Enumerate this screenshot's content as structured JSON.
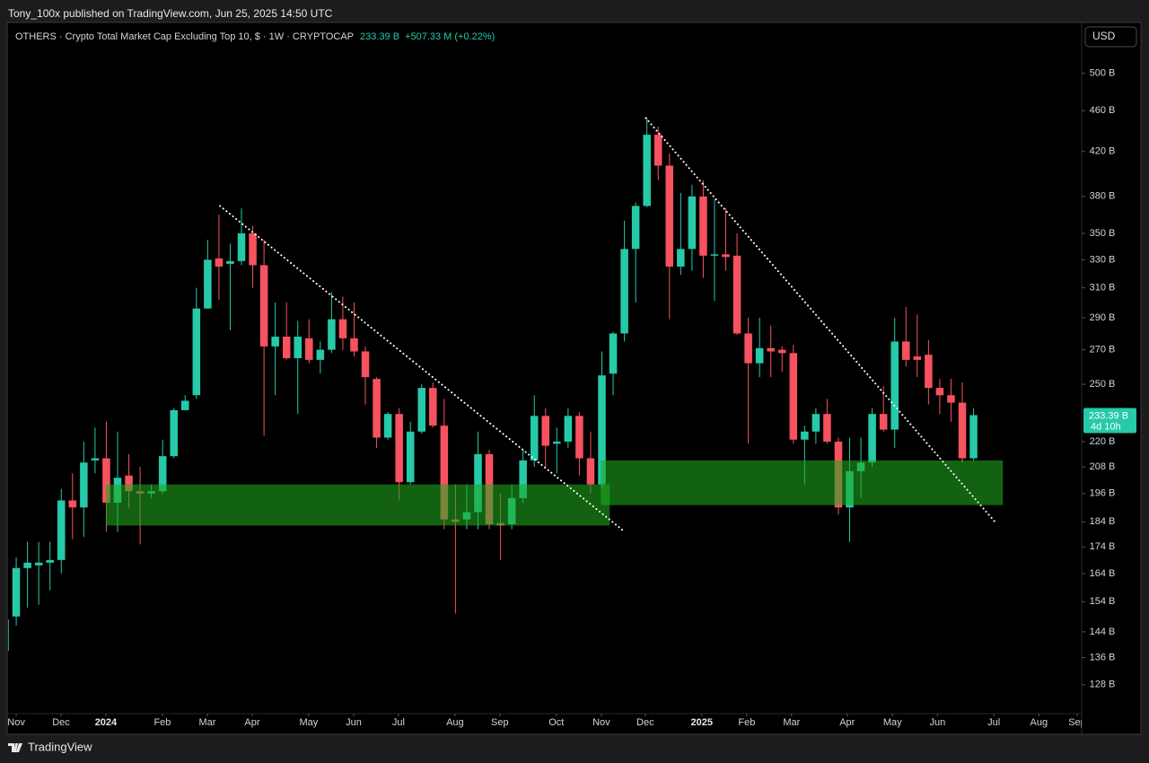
{
  "header": {
    "publisher": "Tony_100x published on TradingView.com, Jun 25, 2025 14:50 UTC",
    "symbol": "OTHERS · Crypto Total Market Cap Excluding Top 10, $ · 1W · CRYPTOCAP",
    "price": "233.39 B",
    "change": "+507.33 M (+0.22%)",
    "currency": "USD"
  },
  "chart_data": {
    "type": "candlestick",
    "log_scale": true,
    "up_color": "#26c9a8",
    "down_color": "#f7525f",
    "zone_color": "#1fa81f",
    "trendline_color": "#ffffff",
    "candles": {
      "open": [
        138,
        149,
        166,
        167,
        168,
        169,
        193,
        190,
        211,
        212,
        192,
        204,
        197,
        196,
        197,
        213,
        236,
        244,
        296,
        331,
        327,
        329,
        350,
        326,
        272,
        278,
        265,
        277,
        264,
        270,
        289,
        277,
        269,
        253,
        222,
        234,
        201,
        225,
        248,
        228,
        185,
        185,
        188,
        214,
        183.5,
        183,
        194,
        211,
        233,
        219,
        220,
        233,
        212,
        200,
        256,
        280,
        338,
        372,
        436,
        407,
        325,
        338,
        380,
        333,
        334,
        333,
        280,
        262,
        271,
        270,
        268,
        221,
        225,
        234,
        220,
        190,
        206,
        210,
        234,
        226,
        275,
        266,
        267,
        248,
        244,
        240,
        212
      ],
      "high": [
        150,
        170,
        176,
        176,
        176,
        198,
        205,
        220,
        227,
        230,
        225,
        214,
        208,
        200,
        221,
        237,
        244,
        310,
        345,
        365,
        342,
        370,
        356,
        345,
        300,
        300,
        288,
        289,
        275,
        307,
        304,
        300,
        272,
        254,
        235,
        237,
        230,
        250,
        251,
        242,
        200,
        200,
        225,
        216,
        196,
        200,
        216,
        244,
        237,
        227,
        237,
        235,
        225,
        269,
        281,
        360,
        375,
        453,
        444,
        418,
        383,
        390,
        394,
        378,
        370,
        350,
        290,
        290,
        285,
        272,
        273,
        228,
        237,
        242,
        222,
        222,
        222,
        237,
        249,
        290,
        297,
        292,
        276,
        253,
        253,
        251,
        237
      ],
      "low": [
        135,
        146,
        152,
        153,
        158,
        164,
        177,
        178,
        205,
        180,
        180,
        190,
        175,
        194,
        196,
        212,
        236,
        242,
        296,
        302,
        282,
        326,
        310,
        223,
        244,
        264,
        234,
        262,
        256,
        268,
        270,
        266,
        239,
        217,
        221,
        193,
        200,
        224,
        227,
        181,
        150,
        181,
        181,
        181,
        169,
        181,
        192,
        208,
        208,
        205,
        217,
        204,
        196,
        198,
        244,
        275,
        300,
        371,
        394,
        289,
        319,
        322,
        317,
        301,
        322,
        279,
        219,
        254,
        254,
        257,
        219,
        200,
        219,
        219,
        187,
        176,
        194,
        208,
        225,
        217,
        260,
        254,
        239,
        234,
        230,
        210,
        211
      ],
      "close": [
        148,
        166,
        168,
        168,
        169,
        193,
        190,
        210,
        212,
        192,
        203,
        197,
        196,
        197,
        213,
        236,
        241,
        296,
        330,
        325,
        329,
        350,
        326,
        272,
        278,
        265,
        278,
        264,
        270,
        289,
        277,
        269,
        254,
        222,
        234,
        201,
        225,
        248,
        228,
        185,
        184,
        188,
        214,
        183,
        182.5,
        194,
        211,
        233,
        218,
        220,
        233,
        212,
        200,
        255,
        280,
        338,
        372,
        436,
        407,
        325,
        338,
        380,
        333,
        334,
        332,
        280,
        262,
        271,
        269,
        268,
        221,
        225,
        234,
        220,
        190,
        206,
        210,
        234,
        226,
        275,
        264,
        264,
        248,
        244,
        240,
        212,
        233.39
      ]
    },
    "ylim": [
      120,
      560
    ],
    "yticks": [
      {
        "value": 128,
        "label": "128 B"
      },
      {
        "value": 136,
        "label": "136 B"
      },
      {
        "value": 144,
        "label": "144 B"
      },
      {
        "value": 154,
        "label": "154 B"
      },
      {
        "value": 164,
        "label": "164 B"
      },
      {
        "value": 174,
        "label": "174 B"
      },
      {
        "value": 184,
        "label": "184 B"
      },
      {
        "value": 196,
        "label": "196 B"
      },
      {
        "value": 208,
        "label": "208 B"
      },
      {
        "value": 220,
        "label": "220 B"
      },
      {
        "value": 250,
        "label": "250 B"
      },
      {
        "value": 270,
        "label": "270 B"
      },
      {
        "value": 290,
        "label": "290 B"
      },
      {
        "value": 310,
        "label": "310 B"
      },
      {
        "value": 330,
        "label": "330 B"
      },
      {
        "value": 350,
        "label": "350 B"
      },
      {
        "value": 380,
        "label": "380 B"
      },
      {
        "value": 420,
        "label": "420 B"
      },
      {
        "value": 460,
        "label": "460 B"
      },
      {
        "value": 500,
        "label": "500 B"
      }
    ],
    "xlim": [
      -0.44,
      95.6
    ],
    "xticks": [
      {
        "value": 1.0,
        "label": "Nov"
      },
      {
        "value": 4.98,
        "label": "Dec"
      },
      {
        "value": 8.96,
        "label": "2024"
      },
      {
        "value": 13.98,
        "label": "Feb"
      },
      {
        "value": 17.97,
        "label": "Mar"
      },
      {
        "value": 21.95,
        "label": "Apr"
      },
      {
        "value": 26.97,
        "label": "May"
      },
      {
        "value": 30.96,
        "label": "Jun"
      },
      {
        "value": 34.94,
        "label": "Jul"
      },
      {
        "value": 39.96,
        "label": "Aug"
      },
      {
        "value": 43.94,
        "label": "Sep"
      },
      {
        "value": 48.96,
        "label": "Oct"
      },
      {
        "value": 52.95,
        "label": "Nov"
      },
      {
        "value": 56.85,
        "label": "Dec"
      },
      {
        "value": 61.87,
        "label": "2025"
      },
      {
        "value": 65.86,
        "label": "Feb"
      },
      {
        "value": 69.84,
        "label": "Mar"
      },
      {
        "value": 74.78,
        "label": "Apr"
      },
      {
        "value": 78.8,
        "label": "May"
      },
      {
        "value": 82.8,
        "label": "Jun"
      },
      {
        "value": 87.8,
        "label": "Jul"
      },
      {
        "value": 91.8,
        "label": "Aug"
      },
      {
        "value": 95.2,
        "label": "Sep"
      }
    ],
    "zones": [
      {
        "low": 182.5,
        "high": 200,
        "x_start": 8.96,
        "x_end": 53.7
      },
      {
        "low": 191,
        "high": 211,
        "x_start": 52.9,
        "x_end": 88.6
      }
    ],
    "trendlines": [
      {
        "x": [
          19.1,
          54.8
        ],
        "y": [
          372,
          180.8
        ]
      },
      {
        "x": [
          56.9,
          87.9
        ],
        "y": [
          452.5,
          184
        ]
      }
    ],
    "last_price": {
      "value": 233.39,
      "label": "233.39 B"
    },
    "countdown": "4d 10h"
  },
  "footer": {
    "brand": "TradingView"
  }
}
